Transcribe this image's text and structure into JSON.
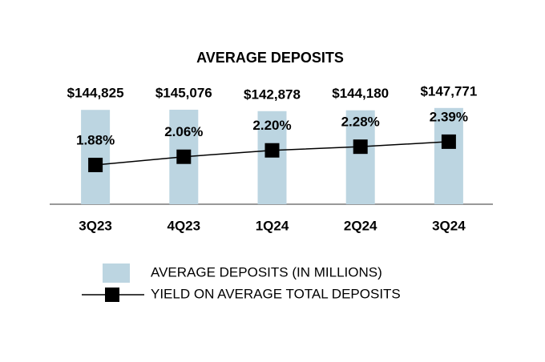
{
  "chart_data": {
    "type": "bar",
    "title": "AVERAGE DEPOSITS",
    "categories": [
      "3Q23",
      "4Q23",
      "1Q24",
      "2Q24",
      "3Q24"
    ],
    "series": [
      {
        "name": "AVERAGE DEPOSITS (IN MILLIONS)",
        "type": "bar",
        "color": "#bcd5e1",
        "values": [
          144825,
          145076,
          142878,
          144180,
          147771
        ],
        "value_labels": [
          "$144,825",
          "$145,076",
          "$142,878",
          "$144,180",
          "$147,771"
        ]
      },
      {
        "name": "YIELD ON AVERAGE TOTAL DEPOSITS",
        "type": "line",
        "color": "#000000",
        "axis": "y2",
        "values": [
          1.88,
          2.06,
          2.2,
          2.28,
          2.39
        ],
        "value_labels": [
          "1.88%",
          "2.06%",
          "2.20%",
          "2.28%",
          "2.39%"
        ]
      }
    ],
    "ylim": [
      0,
      150000
    ],
    "y2lim": [
      1.02,
      3.16
    ]
  }
}
